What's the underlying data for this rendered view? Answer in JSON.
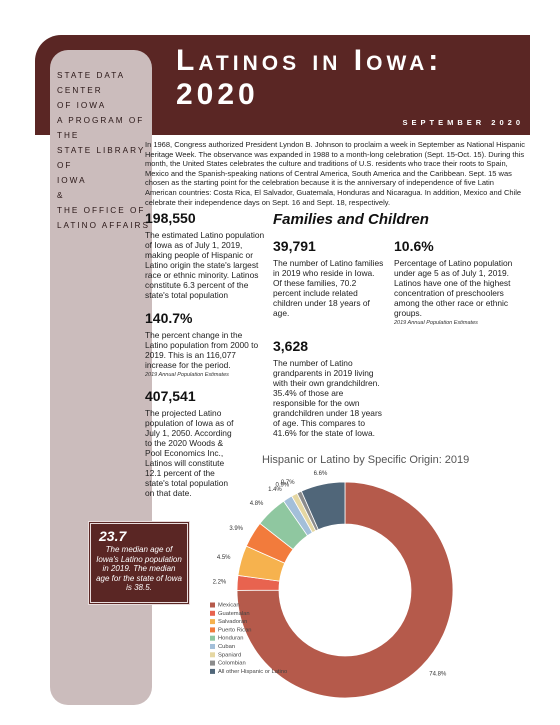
{
  "header": {
    "title_line1": "Latinos in Iowa:",
    "title_line2": "2020",
    "date": "September 2020"
  },
  "sidebar": {
    "lines": [
      "State Data Center",
      "of Iowa",
      "A Program of the",
      "State Library of",
      "Iowa",
      "&",
      "The Office of",
      "Latino Affairs"
    ]
  },
  "intro": "In 1968, Congress authorized President Lyndon B. Johnson to proclaim a week in September as National Hispanic Heritage Week. The observance was expanded in 1988 to a month-long celebration (Sept. 15-Oct. 15). During this month, the United States celebrates the culture and traditions of U.S. residents who trace their roots to Spain, Mexico and the Spanish-speaking nations of Central America, South America and the Caribbean. Sept. 15 was chosen as the starting point for the celebration because it is the anniversary of independence of five Latin American countries: Costa Rica, El Salvador, Guatemala, Honduras and Nicaragua. In addition, Mexico and Chile celebrate their independence days on Sept. 16 and Sept. 18, respectively.",
  "stats": [
    {
      "value": "198,550",
      "text": "The estimated Latino population of Iowa as of July 1, 2019, making people of Hispanic or Latino origin the state's largest race or ethnic minority. Latinos constitute 6.3 percent of the state's total population"
    },
    {
      "value": "140.7%",
      "text": "The percent change in the Latino population from 2000 to 2019. This is an 116,077 increase for the period.",
      "source": "2019 Annual Population Estimates"
    },
    {
      "value": "407,541",
      "text": "The projected Latino population of Iowa as of July 1, 2050. According to the 2020 Woods & Pool Economics Inc., Latinos will constitute 12.1 percent of the state's total population on that date."
    }
  ],
  "section": {
    "title": "Families and Children",
    "stats": [
      {
        "value": "39,791",
        "text": "The number of Latino families in 2019 who reside in Iowa. Of these families, 70.2 percent include related children under 18 years of age."
      },
      {
        "value": "3,628",
        "text": "The number of Latino grandparents in 2019 living with their own grandchildren. 35.4% of those are responsible for the own grandchildren under 18 years of age. This compares to 41.6% for the state of Iowa."
      },
      {
        "value": "10.6%",
        "text": "Percentage of Latino population under age 5 as of July 1, 2019. Latinos have one of the highest concentration of preschoolers among the other race or ethnic groups.",
        "source": "2019 Annual Population Estimates"
      }
    ]
  },
  "callout": {
    "value": "23.7",
    "text": "The median age of Iowa's Latino population in 2019. The median age for the state of Iowa is 38.5."
  },
  "chart_data": {
    "type": "donut",
    "title": "Hispanic or Latino by Specific Origin: 2019",
    "categories": [
      "Mexican",
      "Guatemalan",
      "Salvadoran",
      "Puerto Rican",
      "Honduran",
      "Cuban",
      "Spaniard",
      "Colombian",
      "All other Hispanic or Latino"
    ],
    "values": [
      74.8,
      2.2,
      4.5,
      3.9,
      4.8,
      1.4,
      0.9,
      0.7,
      6.6
    ],
    "value_labels": [
      "74.8%",
      "2.2%",
      "4.5%",
      "3.9%",
      "4.8%",
      "1.4%",
      "0.9%",
      "0.7%",
      "6.6%"
    ],
    "colors": [
      "#b55a4b",
      "#e8634f",
      "#f6b24e",
      "#f27b3c",
      "#8fc7a0",
      "#a3bfd9",
      "#e5d7a2",
      "#8c8c8c",
      "#506679"
    ]
  }
}
